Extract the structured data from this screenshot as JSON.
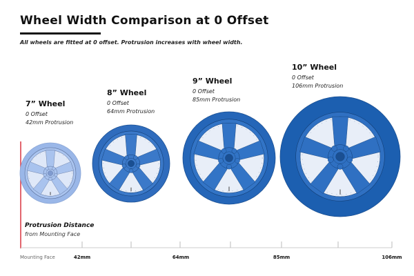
{
  "header": {
    "title": "Wheel Width Comparison at 0 Offset",
    "subtitle": "All wheels are fitted at 0 offset. Protrusion increases with wheel width."
  },
  "wheels": [
    {
      "name": "7” Wheel",
      "offset": "0 Offset",
      "protrusion": "42mm Protrusion",
      "protrusion_mm": 42,
      "color": "#a9c3ee",
      "tire_color": "#9ab7e8"
    },
    {
      "name": "8” Wheel",
      "offset": "0 Offset",
      "protrusion": "64mm Protrusion",
      "protrusion_mm": 64,
      "color": "#3b79c9",
      "tire_color": "#2f6cbd"
    },
    {
      "name": "9” Wheel",
      "offset": "0 Offset",
      "protrusion": "85mm Protrusion",
      "protrusion_mm": 85,
      "color": "#3274c6",
      "tire_color": "#2566b8"
    },
    {
      "name": "10” Wheel",
      "offset": "0 Offset",
      "protrusion": "106mm Protrusion",
      "protrusion_mm": 106,
      "color": "#2f70c2",
      "tire_color": "#1c5fb0"
    }
  ],
  "axis": {
    "title": "Protrusion Distance",
    "subtitle": "from Mounting Face",
    "origin_label": "Mounting Face",
    "ticks": [
      "42mm",
      "64mm",
      "85mm",
      "106mm"
    ],
    "reference_color": "#d9333f"
  }
}
